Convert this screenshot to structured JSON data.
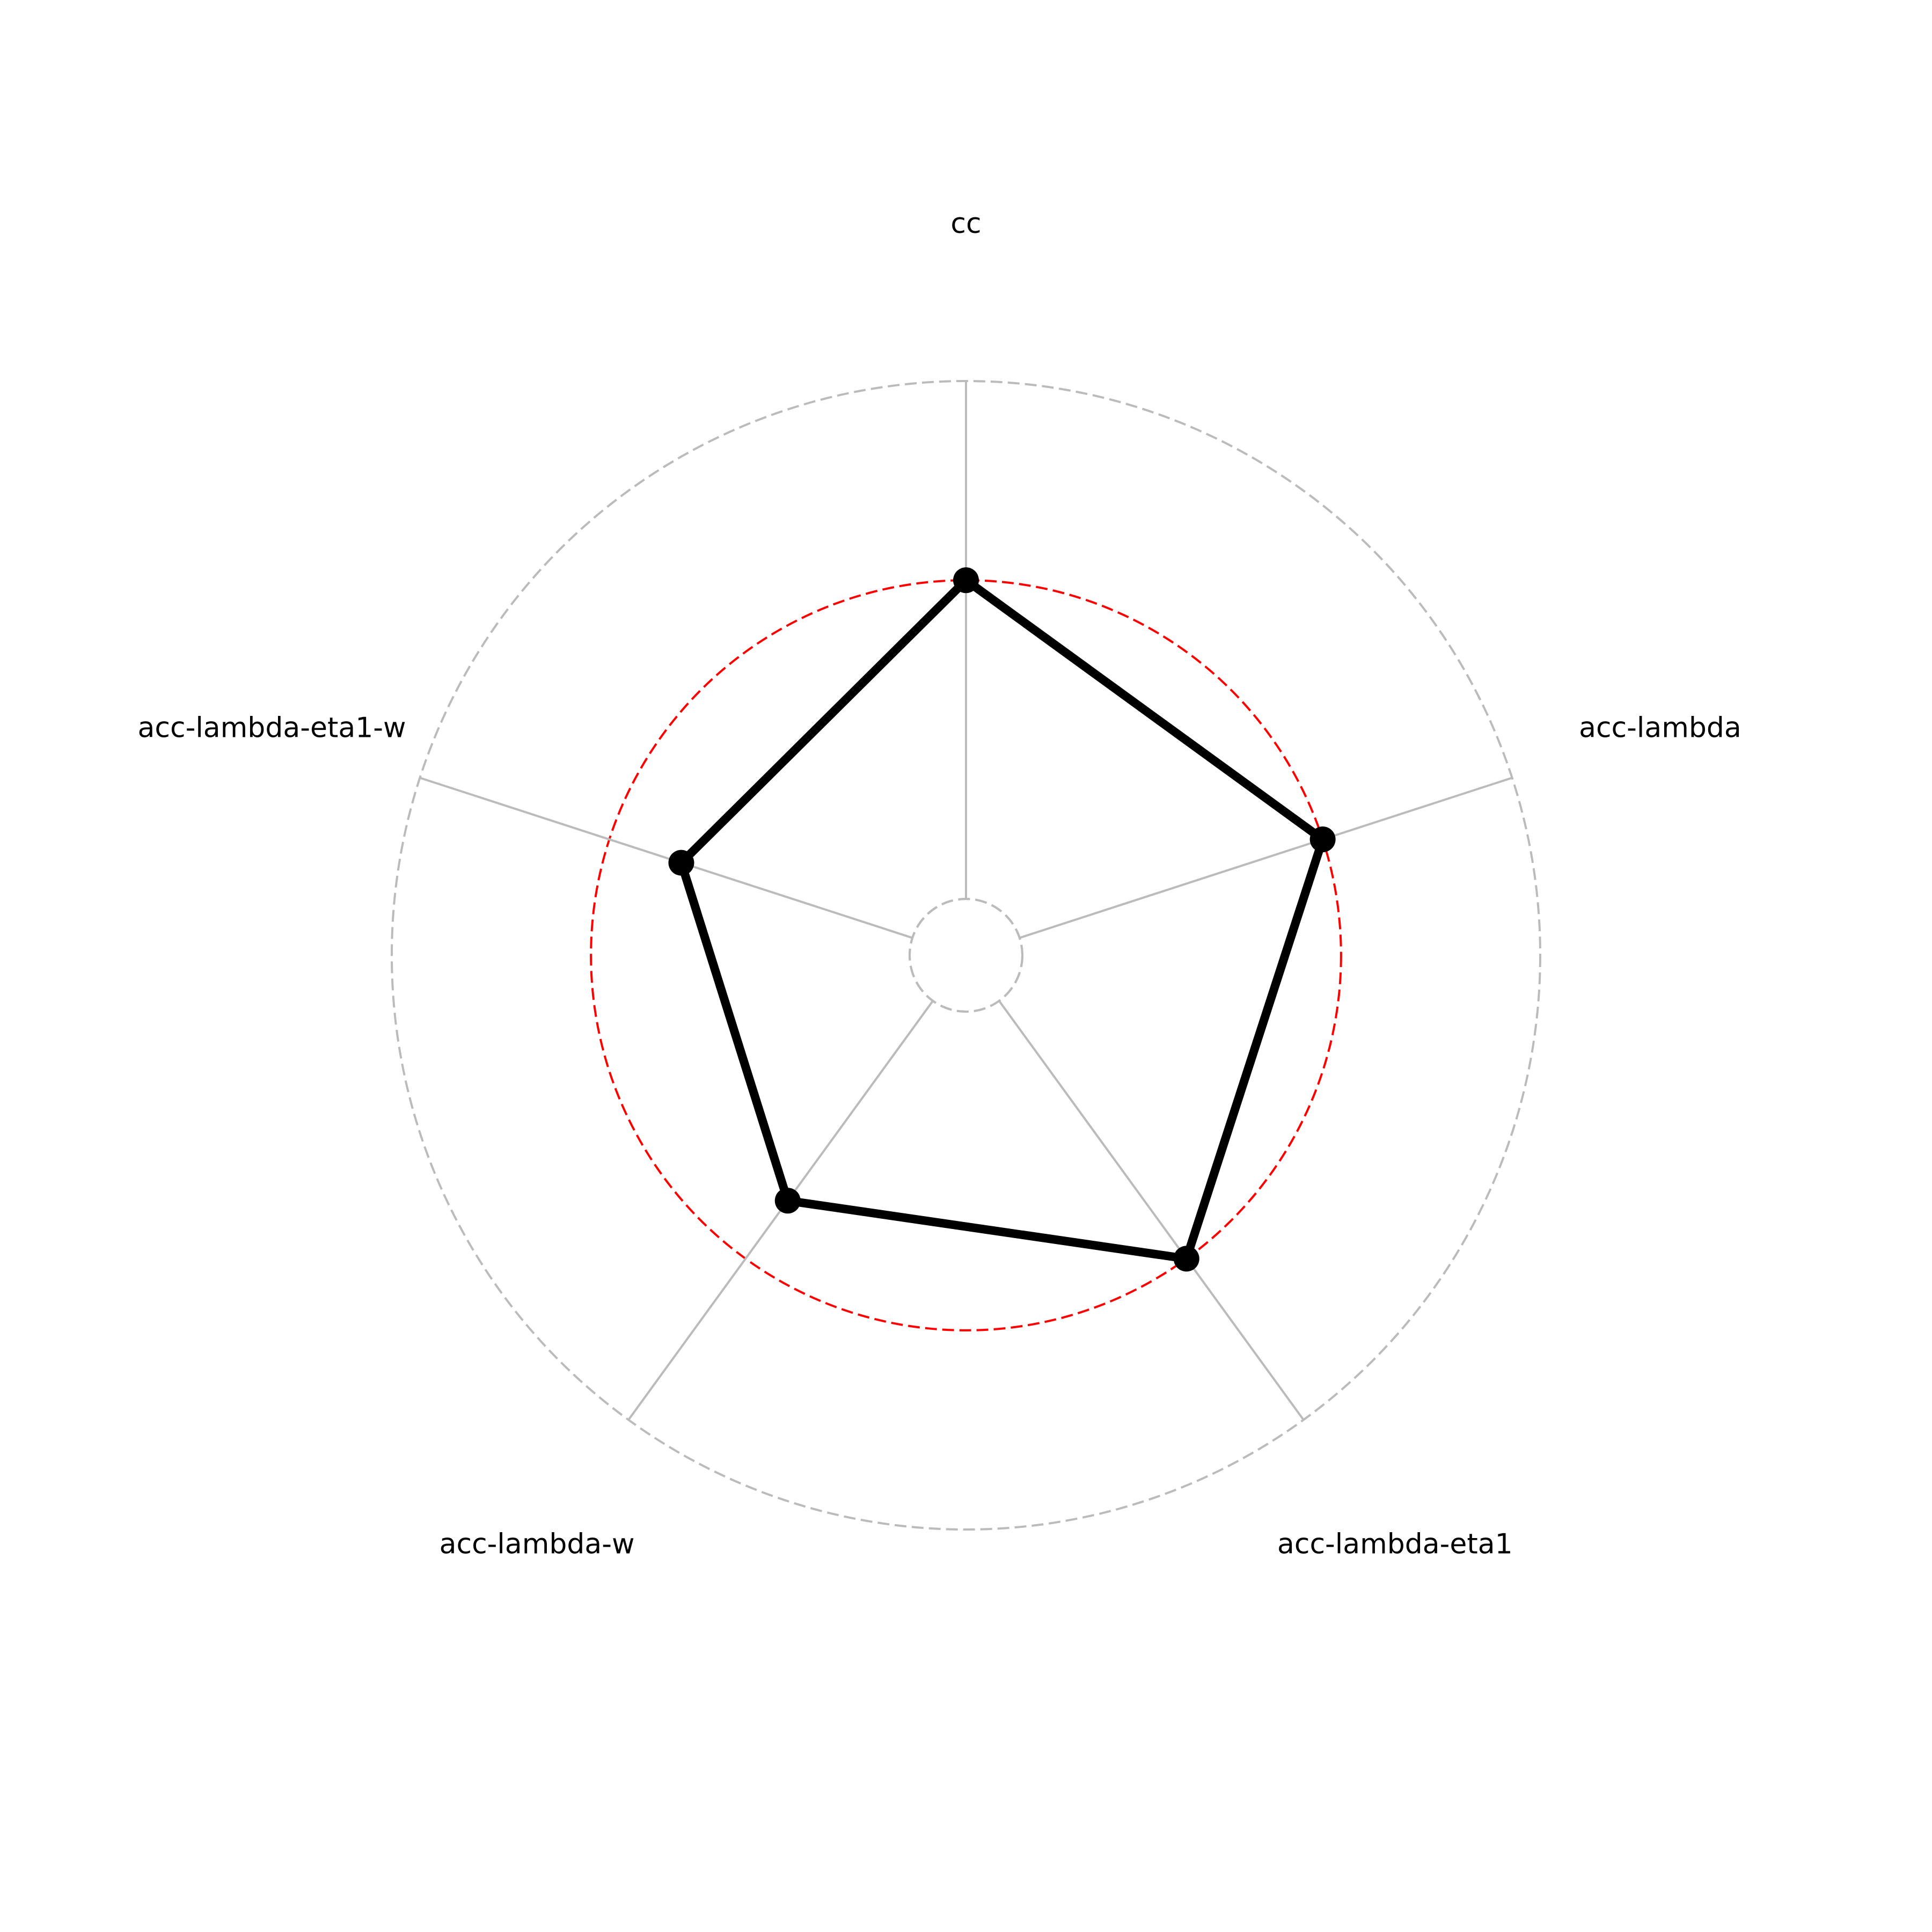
{
  "chart_data": {
    "type": "radar",
    "axes": [
      "cc",
      "acc-lambda",
      "acc-lambda-eta1",
      "acc-lambda-w",
      "acc-lambda-eta1-w"
    ],
    "series": [
      {
        "values": [
          0.0,
          0.0,
          0.0,
          -0.18,
          -0.19
        ]
      }
    ],
    "rlim": [
      -0.8,
      0.5
    ],
    "rings": [
      {
        "value": -0.8,
        "style": "dashed",
        "color": "#bbbbbb"
      },
      {
        "value": 0.0,
        "style": "dashed",
        "color": "#ff0000"
      },
      {
        "value": 0.5,
        "style": "dashed",
        "color": "#bbbbbb"
      }
    ],
    "colors": {
      "series": "#000000",
      "spokes": "#bbbbbb"
    },
    "grid": true,
    "legend": "none"
  }
}
